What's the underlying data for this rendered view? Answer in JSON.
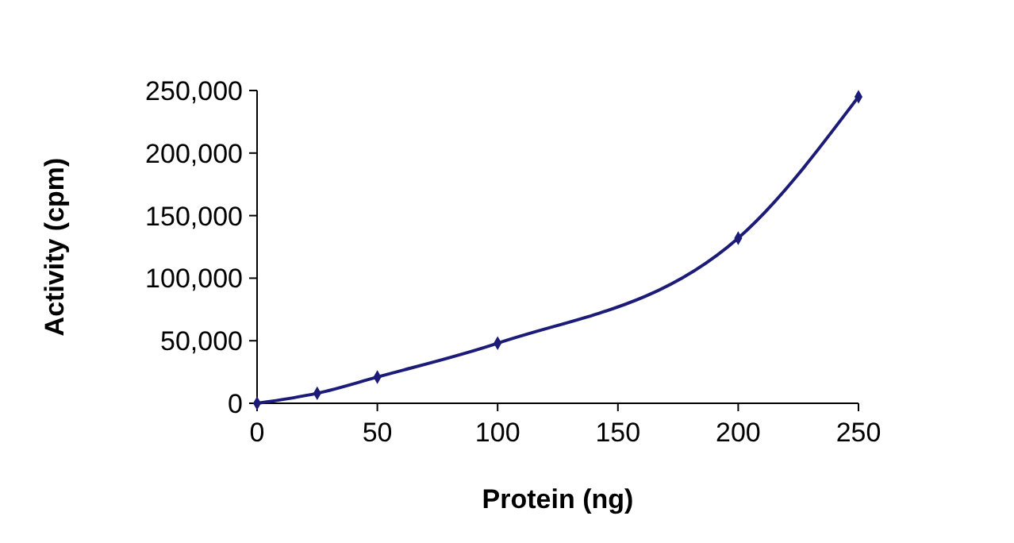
{
  "chart_data": {
    "type": "line",
    "xlabel": "Protein (ng)",
    "ylabel": "Activity (cpm)",
    "x": [
      0,
      25,
      50,
      100,
      200,
      250
    ],
    "series": [
      {
        "color": "#1c1c78",
        "values": [
          0,
          8000,
          21000,
          48000,
          132000,
          245000
        ]
      }
    ],
    "xlim": [
      0,
      250
    ],
    "xticks": [
      0,
      50,
      100,
      150,
      200,
      250
    ],
    "ylim": [
      0,
      250000
    ],
    "yticks": [
      0,
      {
        "value": 50000,
        "label": "50,000"
      },
      {
        "value": 100000,
        "label": "100,000"
      },
      {
        "value": 150000,
        "label": "150,000"
      },
      {
        "value": 200000,
        "label": "200,000"
      },
      {
        "value": 250000,
        "label": "250,000"
      }
    ],
    "grid": false,
    "marker": "diamond",
    "line_style": "solid"
  }
}
